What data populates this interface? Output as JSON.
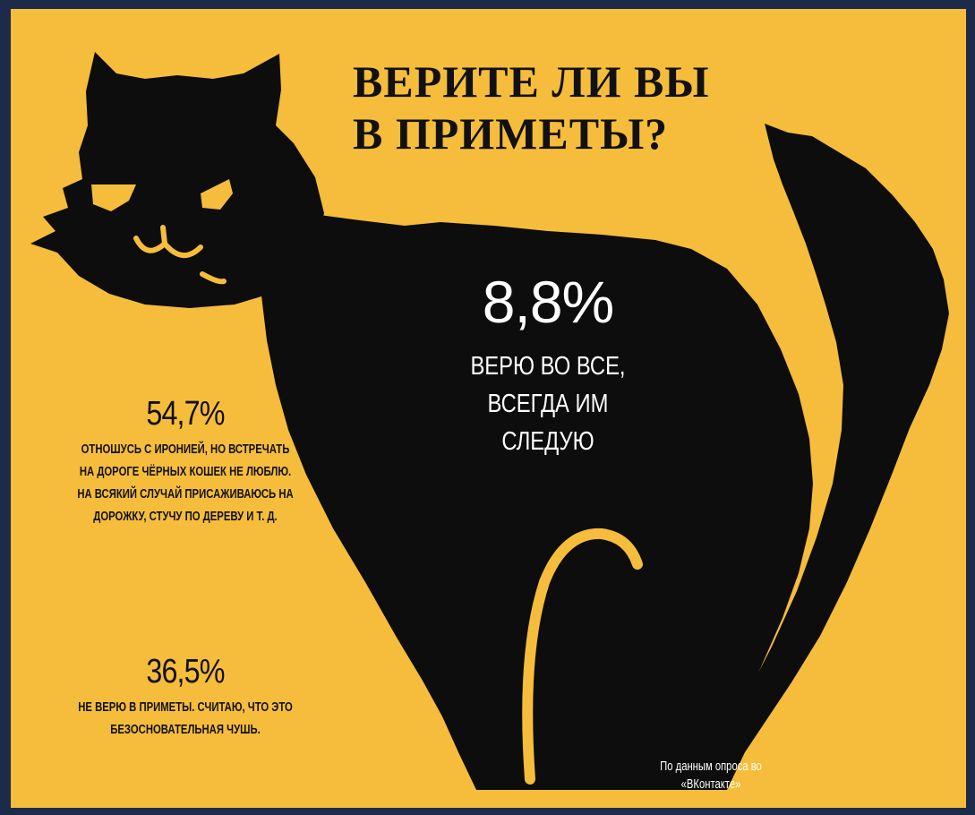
{
  "title": {
    "line1": "ВЕРИТЕ ЛИ ВЫ",
    "line2": "В ПРИМЕТЫ?"
  },
  "stats": {
    "believe_all": {
      "percent": "8,8%",
      "text": "ВЕРЮ ВО ВСЕ, ВСЕГДА ИМ СЛЕДУЮ"
    },
    "ironic": {
      "percent": "54,7%",
      "text": "ОТНОШУСЬ С ИРОНИЕЙ, НО ВСТРЕЧАТЬ НА ДОРОГЕ ЧЁРНЫХ КОШЕК НЕ ЛЮБЛЮ. НА ВСЯКИЙ СЛУЧАЙ ПРИСАЖИВАЮСЬ НА ДОРОЖКУ, СТУЧУ ПО ДЕРЕВУ И Т. Д."
    },
    "dont_believe": {
      "percent": "36,5%",
      "text": "НЕ ВЕРЮ В ПРИМЕТЫ. СЧИТАЮ, ЧТО ЭТО БЕЗОСНОВАТЕЛЬНАЯ ЧУШЬ."
    }
  },
  "source": {
    "text": "По данным опроса во «ВКонтакте»"
  },
  "colors": {
    "background": "#f6bd3c",
    "frame": "#1c2b4a",
    "cat": "#0d0d0d"
  },
  "illustration": "black-cat-silhouette"
}
